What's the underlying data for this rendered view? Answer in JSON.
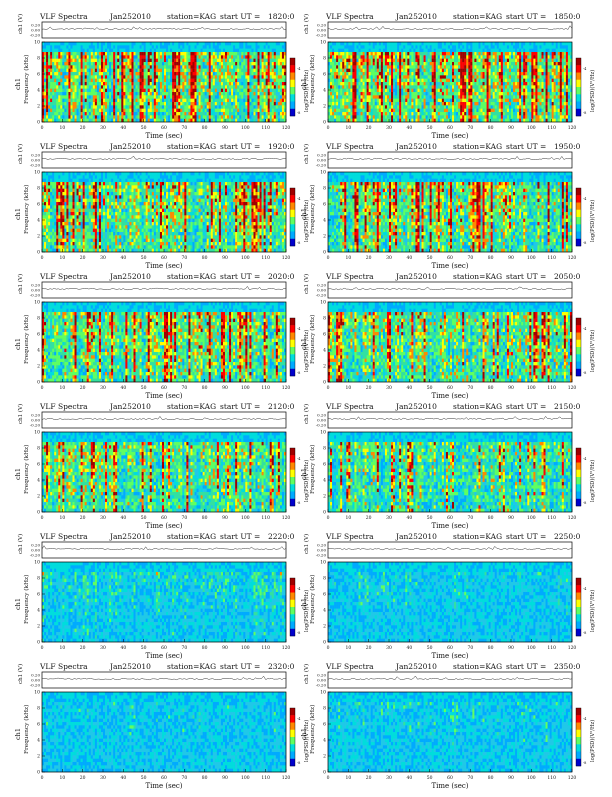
{
  "page": {
    "header_prefix": "VLF Spectra",
    "date": "Jan252010",
    "station": "station=KAG",
    "start_label": "start  UT =",
    "amp_ylabel": "ch1 (V)",
    "spec_ylabel": "Frequency (kHz)",
    "spec_ylabel_prefix": "ch1",
    "xlabel": "Time (sec)",
    "colorbar_label": "log(PSD)(V²/Hz)"
  },
  "chart_data": [
    {
      "type": "heatmap",
      "start_ut": "1820:0",
      "activity": 0.95,
      "tail_decay": 0.2
    },
    {
      "type": "heatmap",
      "start_ut": "1850:0",
      "activity": 0.95,
      "tail_decay": 0.2
    },
    {
      "type": "heatmap",
      "start_ut": "1920:0",
      "activity": 0.9,
      "tail_decay": 0.2
    },
    {
      "type": "heatmap",
      "start_ut": "1950:0",
      "activity": 0.9,
      "tail_decay": 0.2
    },
    {
      "type": "heatmap",
      "start_ut": "2020:0",
      "activity": 0.9,
      "tail_decay": 0.2
    },
    {
      "type": "heatmap",
      "start_ut": "2050:0",
      "activity": 0.85,
      "tail_decay": 0.2
    },
    {
      "type": "heatmap",
      "start_ut": "2120:0",
      "activity": 0.8,
      "tail_decay": 0.2
    },
    {
      "type": "heatmap",
      "start_ut": "2150:0",
      "activity": 0.75,
      "tail_decay": 0.2
    },
    {
      "type": "heatmap",
      "start_ut": "2220:0",
      "activity": 0.45,
      "tail_decay": 0.5
    },
    {
      "type": "heatmap",
      "start_ut": "2250:0",
      "activity": 0.35,
      "tail_decay": 0.6
    },
    {
      "type": "heatmap",
      "start_ut": "2320:0",
      "activity": 0.3,
      "tail_decay": 0.6
    },
    {
      "type": "heatmap",
      "start_ut": "2350:0",
      "activity": 0.35,
      "tail_decay": 0.6
    }
  ],
  "axes": {
    "x": {
      "range": [
        0,
        120
      ],
      "ticks": [
        "0",
        "10",
        "20",
        "30",
        "40",
        "50",
        "60",
        "70",
        "80",
        "90",
        "100",
        "110",
        "120"
      ]
    },
    "y_freq": {
      "range": [
        0,
        10
      ],
      "ticks": [
        "0",
        "2",
        "4",
        "6",
        "8",
        "10"
      ]
    },
    "y_amp": {
      "ticks": [
        "0.20",
        "0.00",
        "-0.20"
      ]
    },
    "colorbar": {
      "ticks": [
        "-4",
        "-8"
      ],
      "colors": [
        "#a00000",
        "#ff0000",
        "#ff8800",
        "#ffff00",
        "#60ff60",
        "#00dddd",
        "#00aaff",
        "#0000cc"
      ]
    }
  }
}
